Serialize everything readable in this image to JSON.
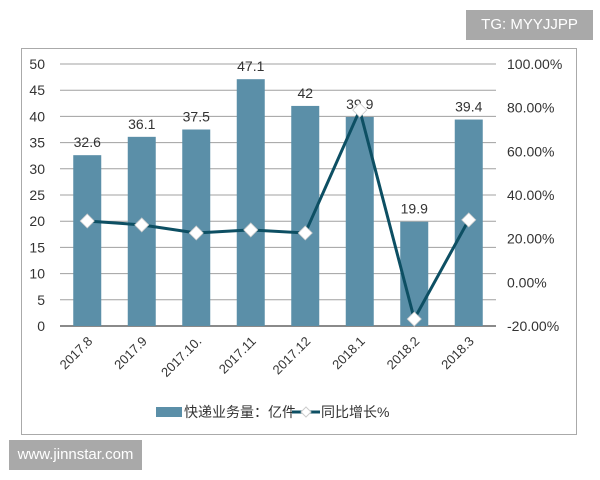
{
  "watermarks": {
    "top": "TG: MYYJJPP",
    "bottom": "www.jinnstar.com"
  },
  "chart_data": {
    "type": "bar+line",
    "categories": [
      "2017.8",
      "2017.9",
      "2017.10.",
      "2017.11",
      "2017.12",
      "2018.1",
      "2018.2",
      "2018.3"
    ],
    "series": [
      {
        "name": "快递业务量：亿件",
        "type": "bar",
        "axis": "left",
        "values": [
          32.6,
          36.1,
          37.5,
          47.1,
          42,
          39.9,
          19.9,
          39.4
        ],
        "color": "#5b8fa8"
      },
      {
        "name": "同比增长%",
        "type": "line",
        "axis": "right",
        "values": [
          28.1,
          26.3,
          22.6,
          24.0,
          22.6,
          78.9,
          -16.8,
          28.6
        ],
        "color": "#0d4f63"
      }
    ],
    "data_labels": [
      "32.6",
      "36.1",
      "37.5",
      "47.1",
      "42",
      "39.9",
      "19.9",
      "39.4"
    ],
    "ylim_left": [
      0,
      50
    ],
    "yticks_left": [
      "0",
      "5",
      "10",
      "15",
      "20",
      "25",
      "30",
      "35",
      "40",
      "45",
      "50"
    ],
    "ylim_right": [
      -20,
      100
    ],
    "yticks_right": [
      "-20.00%",
      "0.00%",
      "20.00%",
      "40.00%",
      "60.00%",
      "80.00%",
      "100.00%"
    ],
    "grid": true,
    "legend": "bottom"
  }
}
